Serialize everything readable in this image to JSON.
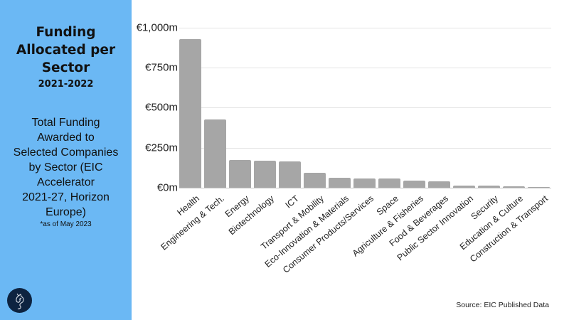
{
  "sidebar": {
    "title_lines": [
      "Funding",
      "Allocated per",
      "Sector"
    ],
    "years": "2021-2022",
    "subtitle_lines": [
      "Total Funding",
      "Awarded to",
      "Selected Companies",
      "by Sector (EIC",
      "Accelerator",
      "2021-27, Horizon",
      "Europe)"
    ],
    "footnote": "*as of May 2023",
    "logo_icon": "horse-head-logo-icon",
    "background_color": "#6bb8f4"
  },
  "source": "Source: EIC Published Data",
  "chart_data": {
    "type": "bar",
    "title": "Funding Allocated per Sector 2021-2022",
    "xlabel": "",
    "ylabel": "",
    "ylim": [
      0,
      1000
    ],
    "yticks": [
      0,
      250,
      500,
      750,
      1000
    ],
    "ytick_labels": [
      "€0m",
      "€250m",
      "€500m",
      "€750m",
      "€1,000m"
    ],
    "grid": true,
    "legend": null,
    "bar_color": "#a6a6a6",
    "categories": [
      "Health",
      "Engineering & Tech.",
      "Energy",
      "Biotechnology",
      "ICT",
      "Transport & Mobility",
      "Eco-Innovation & Materials",
      "Consumer Products/Services",
      "Space",
      "Agriculture & Fisheries",
      "Food & Beverages",
      "Public Sector Innovation",
      "Security",
      "Education & Culture",
      "Construction & Transport"
    ],
    "values": [
      930,
      427,
      172,
      168,
      163,
      92,
      64,
      59,
      56,
      44,
      39,
      15,
      12,
      7,
      2
    ]
  }
}
